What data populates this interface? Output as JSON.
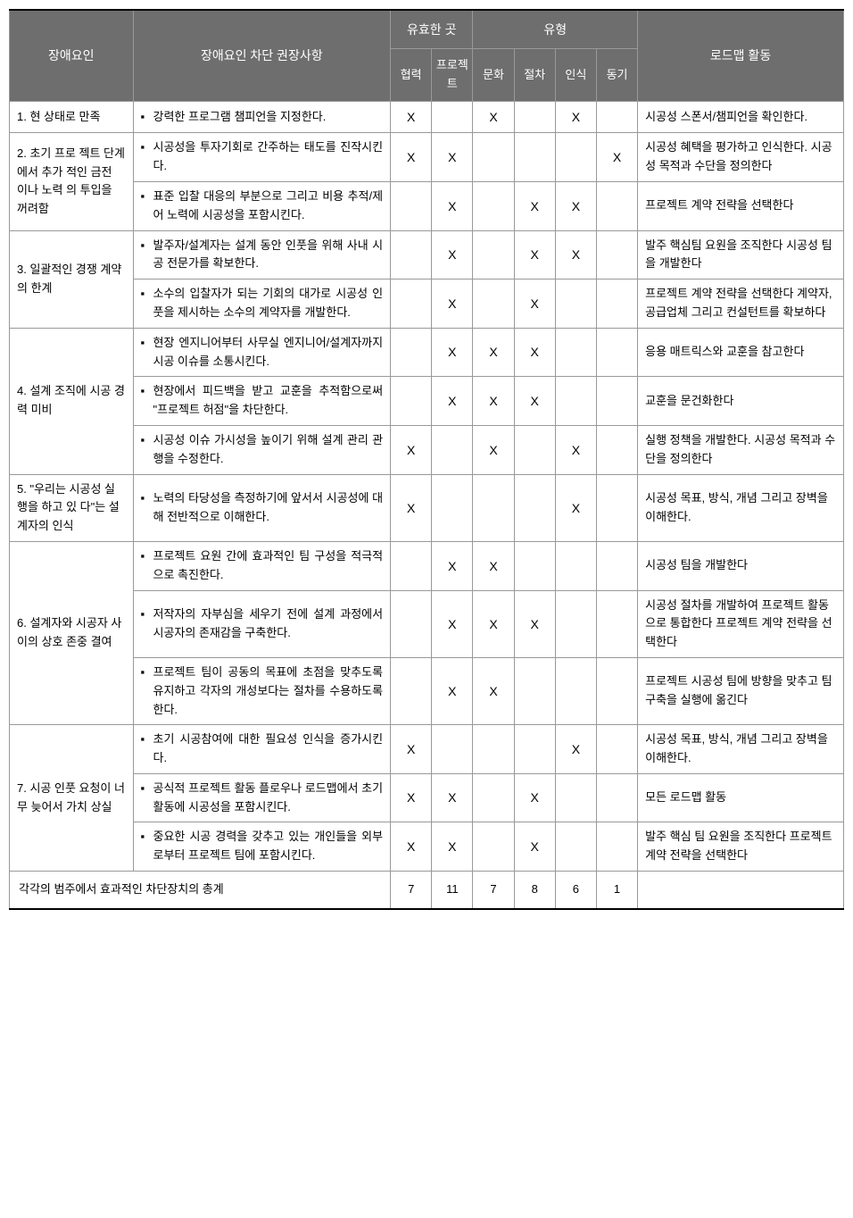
{
  "headers": {
    "barrier": "장애요인",
    "recommendation": "장애요인 차단 권장사항",
    "valid_place": "유효한 곳",
    "type": "유형",
    "roadmap": "로드맵 활동",
    "cooperation": "협력",
    "project": "프로젝트",
    "culture": "문화",
    "procedure": "절차",
    "recognition": "인식",
    "motivation": "동기"
  },
  "rows": [
    {
      "barrier": "1. 현 상태로 만족",
      "rowspan": 1,
      "items": [
        {
          "recommend": "강력한 프로그램 챔피언을 지정한다.",
          "checks": [
            "X",
            "",
            "X",
            "",
            "X",
            ""
          ],
          "roadmap": "시공성 스폰서/챔피언을 확인한다."
        }
      ]
    },
    {
      "barrier": "2. 초기 프로 젝트 단계 에서 추가 적인 금전 이나 노력 의 투입을 꺼려함",
      "rowspan": 2,
      "items": [
        {
          "recommend": "시공성을 투자기회로 간주하는 태도를 진작시킨다.",
          "checks": [
            "X",
            "X",
            "",
            "",
            "",
            "X"
          ],
          "roadmap": "시공성 혜택을 평가하고 인식한다. 시공성 목적과 수단을 정의한다"
        },
        {
          "recommend": "표준 입찰 대응의 부분으로 그리고 비용 추적/제어 노력에 시공성을 포함시킨다.",
          "checks": [
            "",
            "X",
            "",
            "X",
            "X",
            ""
          ],
          "roadmap": "프로젝트 계약 전략을 선택한다"
        }
      ]
    },
    {
      "barrier": "3.   일괄적인 경쟁 계약 의 한계",
      "rowspan": 2,
      "items": [
        {
          "recommend": "발주자/설계자는 설계 동안 인풋을 위해 사내 시공 전문가를 확보한다.",
          "checks": [
            "",
            "X",
            "",
            "X",
            "X",
            ""
          ],
          "roadmap": "발주 핵심팀 요원을 조직한다 시공성 팀을 개발한다"
        },
        {
          "recommend": "소수의 입찰자가 되는 기회의 대가로 시공성 인풋을 제시하는 소수의 계약자를 개발한다.",
          "checks": [
            "",
            "X",
            "",
            "X",
            "",
            ""
          ],
          "roadmap": "프로젝트 계약 전략을 선택한다 계약자, 공급업체 그리고 컨설턴트를 확보하다"
        }
      ]
    },
    {
      "barrier": "4.   설계 조직에 시공 경력 미비",
      "rowspan": 3,
      "items": [
        {
          "recommend": "현장 엔지니어부터 사무실 엔지니어/설계자까지 시공 이슈를 소통시킨다.",
          "checks": [
            "",
            "X",
            "X",
            "X",
            "",
            ""
          ],
          "roadmap": "응용 매트릭스와 교훈을 참고한다"
        },
        {
          "recommend": "현장에서 피드백을 받고 교훈을 추적함으로써 \"프로젝트 허점\"을 차단한다.",
          "checks": [
            "",
            "X",
            "X",
            "X",
            "",
            ""
          ],
          "roadmap": "교훈을 문건화한다"
        },
        {
          "recommend": "시공성 이슈 가시성을 높이기 위해 설계 관리 관행을 수정한다.",
          "checks": [
            "X",
            "",
            "X",
            "",
            "X",
            ""
          ],
          "roadmap": "실행 정책을 개발한다. 시공성 목적과 수단을 정의한다"
        }
      ]
    },
    {
      "barrier": "5. \"우리는 시공성 실행을 하고 있 다\"는 설계자의 인식",
      "rowspan": 1,
      "items": [
        {
          "recommend": "노력의 타당성을 측정하기에 앞서서 시공성에 대해 전반적으로 이해한다.",
          "checks": [
            "X",
            "",
            "",
            "",
            "X",
            ""
          ],
          "roadmap": "시공성 목표, 방식, 개념 그리고 장벽을 이해한다."
        }
      ]
    },
    {
      "barrier": "6. 설계자와 시공자 사이의 상호 존중 결여",
      "rowspan": 3,
      "items": [
        {
          "recommend": "프로젝트 요원 간에 효과적인 팀 구성을 적극적으로 촉진한다.",
          "checks": [
            "",
            "X",
            "X",
            "",
            "",
            ""
          ],
          "roadmap": "시공성 팀을 개발한다"
        },
        {
          "recommend": "저작자의 자부심을 세우기 전에 설계 과정에서 시공자의 존재감을 구축한다.",
          "checks": [
            "",
            "X",
            "X",
            "X",
            "",
            ""
          ],
          "roadmap": "시공성 절차를 개발하여 프로젝트 활동으로 통합한다 프로젝트 계약 전략을 선택한다"
        },
        {
          "recommend": "프로젝트 팀이 공동의 목표에 초점을 맞추도록 유지하고 각자의 개성보다는 절차를 수용하도록 한다.",
          "checks": [
            "",
            "X",
            "X",
            "",
            "",
            ""
          ],
          "roadmap": "프로젝트 시공성 팀에 방향을 맞추고 팀 구축을 실행에 옮긴다"
        }
      ]
    },
    {
      "barrier": "7. 시공 인풋 요청이 너무 늦어서 가치 상실",
      "rowspan": 3,
      "items": [
        {
          "recommend": "초기 시공참여에 대한 필요성 인식을 증가시킨다.",
          "checks": [
            "X",
            "",
            "",
            "",
            "X",
            ""
          ],
          "roadmap": "시공성 목표, 방식, 개념 그리고 장벽을 이해한다."
        },
        {
          "recommend": "공식적 프로젝트 활동 플로우나 로드맵에서 초기 활동에 시공성을 포함시킨다.",
          "checks": [
            "X",
            "X",
            "",
            "X",
            "",
            ""
          ],
          "roadmap": "모든 로드맵 활동"
        },
        {
          "recommend": "중요한 시공 경력을 갖추고 있는 개인들을 외부로부터 프로젝트 팀에 포함시킨다.",
          "checks": [
            "X",
            "X",
            "",
            "X",
            "",
            ""
          ],
          "roadmap": "발주 핵심 팀 요원을 조직한다 프로젝트 계약 전략을 선택한다"
        }
      ]
    }
  ],
  "totals": {
    "label": "각각의 범주에서 효과적인 차단장치의 총계",
    "values": [
      "7",
      "11",
      "7",
      "8",
      "6",
      "1"
    ]
  }
}
